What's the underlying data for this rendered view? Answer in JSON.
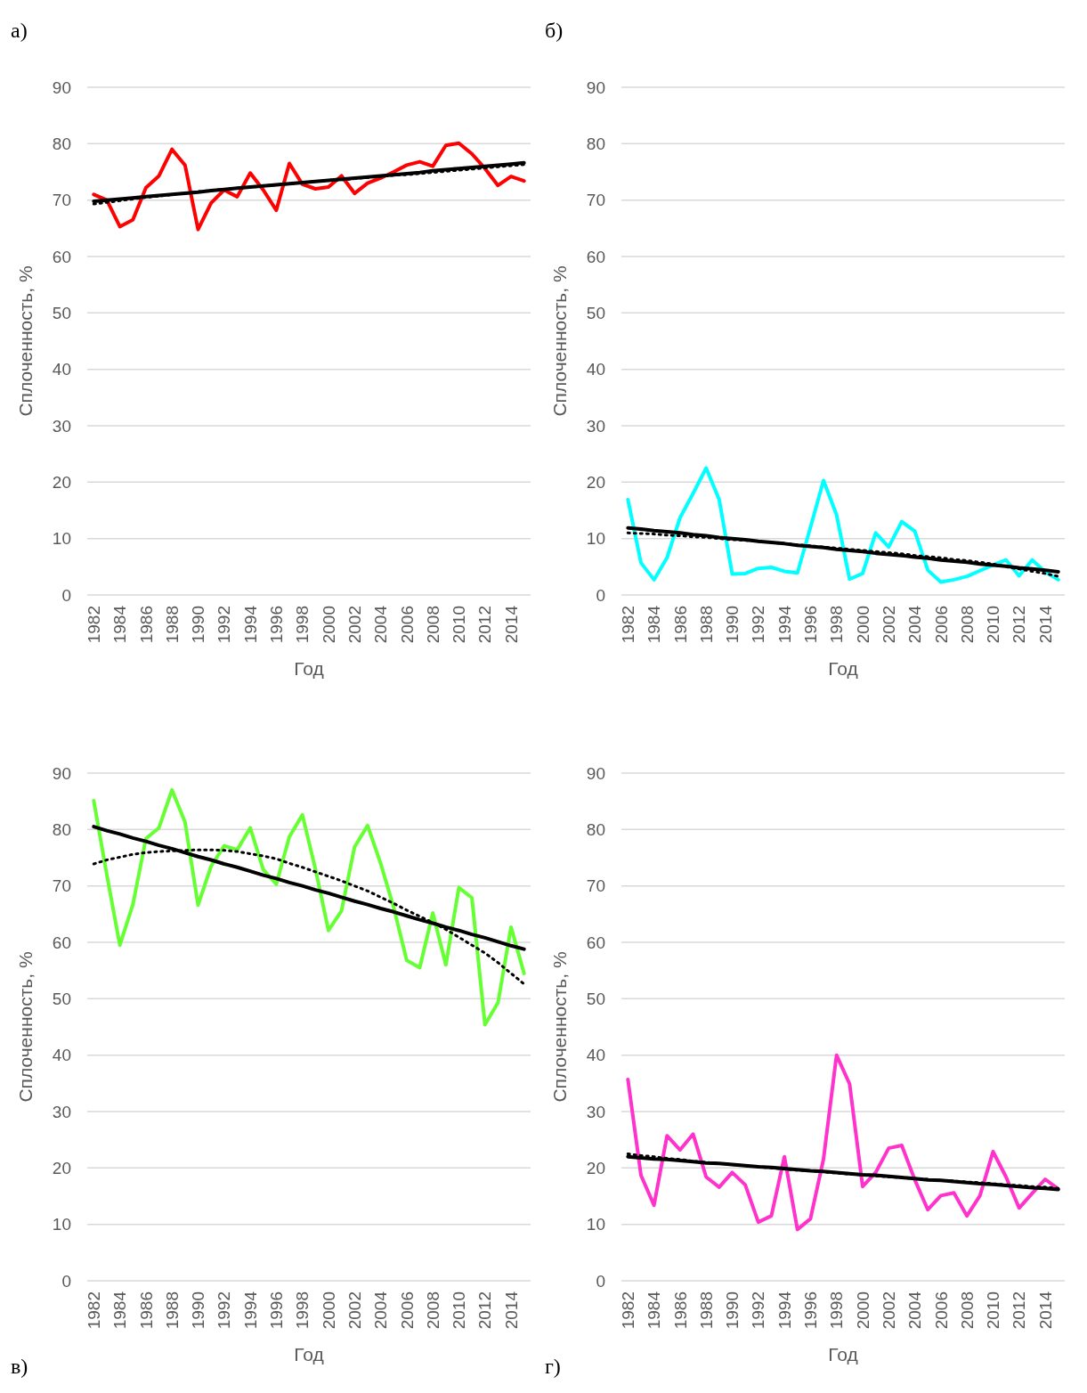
{
  "chart_data": [
    {
      "type": "line",
      "title": "а)",
      "xlabel": "Год",
      "ylabel": "Сплоченность, %",
      "categories": [
        "1982",
        null,
        "1984",
        null,
        "1986",
        null,
        "1988",
        null,
        "1990",
        null,
        "1992",
        null,
        "1994",
        null,
        "1996",
        null,
        "1998",
        null,
        "2000",
        null,
        "2002",
        null,
        "2004",
        null,
        "2006",
        null,
        "2008",
        null,
        "2010",
        null,
        "2012",
        null,
        "2014",
        null
      ],
      "ylim": [
        0,
        90
      ],
      "yticks": [
        0,
        10,
        20,
        30,
        40,
        50,
        60,
        70,
        80,
        90
      ],
      "grid": "y",
      "series": [
        {
          "color": "#ff0000",
          "line_style": "solid",
          "values": [
            71,
            70,
            65.3,
            66.5,
            72.2,
            74.3,
            79,
            76.2,
            64.8,
            69.5,
            71.8,
            70.6,
            74.8,
            71.8,
            68.2,
            76.5,
            72.8,
            72,
            72.3,
            74.3,
            71.2,
            73,
            73.9,
            75,
            76.2,
            76.8,
            76,
            79.7,
            80.1,
            78.2,
            75.6,
            72.6,
            74.2,
            73.4
          ]
        },
        {
          "color": "#000000",
          "line_style": "solid",
          "values": [
            69.8,
            70.0,
            70.2,
            70.4,
            70.6,
            70.8,
            71.0,
            71.2,
            71.4,
            71.7,
            71.9,
            72.1,
            72.3,
            72.5,
            72.7,
            72.9,
            73.1,
            73.3,
            73.5,
            73.7,
            73.9,
            74.1,
            74.3,
            74.5,
            74.7,
            74.9,
            75.2,
            75.4,
            75.6,
            75.8,
            76.0,
            76.2,
            76.4,
            76.6
          ]
        },
        {
          "color": "#000000",
          "line_style": "dotted",
          "values": [
            69.3,
            69.6,
            69.9,
            70.2,
            70.5,
            70.7,
            71.0,
            71.2,
            71.5,
            71.7,
            71.9,
            72.1,
            72.3,
            72.5,
            72.7,
            72.9,
            73.1,
            73.3,
            73.5,
            73.6,
            73.8,
            74.0,
            74.2,
            74.4,
            74.5,
            74.7,
            74.9,
            75.1,
            75.3,
            75.5,
            75.7,
            75.9,
            76.1,
            76.3
          ]
        }
      ]
    },
    {
      "type": "line",
      "title": "б)",
      "xlabel": "Год",
      "ylabel": "Сплоченность, %",
      "categories": [
        "1982",
        null,
        "1984",
        null,
        "1986",
        null,
        "1988",
        null,
        "1990",
        null,
        "1992",
        null,
        "1994",
        null,
        "1996",
        null,
        "1998",
        null,
        "2000",
        null,
        "2002",
        null,
        "2004",
        null,
        "2006",
        null,
        "2008",
        null,
        "2010",
        null,
        "2012",
        null,
        "2014",
        null
      ],
      "ylim": [
        0,
        90
      ],
      "yticks": [
        0,
        10,
        20,
        30,
        40,
        50,
        60,
        70,
        80,
        90
      ],
      "grid": "y",
      "series": [
        {
          "color": "#00ffff",
          "line_style": "solid",
          "values": [
            16.9,
            5.7,
            2.7,
            6.6,
            13.7,
            18,
            22.5,
            16.9,
            3.7,
            3.8,
            4.7,
            4.9,
            4.2,
            3.9,
            12,
            20.3,
            14.2,
            2.8,
            3.8,
            11,
            8.5,
            13,
            11.3,
            4.4,
            2.3,
            2.7,
            3.3,
            4.3,
            5.3,
            6.2,
            3.4,
            6.2,
            4.1,
            2.7
          ]
        },
        {
          "color": "#000000",
          "line_style": "solid",
          "values": [
            11.9,
            11.7,
            11.4,
            11.2,
            11.0,
            10.7,
            10.5,
            10.2,
            10.0,
            9.8,
            9.5,
            9.3,
            9.1,
            8.8,
            8.6,
            8.4,
            8.1,
            7.9,
            7.7,
            7.4,
            7.2,
            7.0,
            6.7,
            6.5,
            6.2,
            6.0,
            5.8,
            5.5,
            5.3,
            5.1,
            4.8,
            4.6,
            4.4,
            4.1
          ]
        },
        {
          "color": "#000000",
          "line_style": "dotted",
          "values": [
            11.0,
            10.9,
            10.8,
            10.6,
            10.5,
            10.3,
            10.2,
            10.0,
            9.8,
            9.7,
            9.5,
            9.3,
            9.1,
            8.9,
            8.7,
            8.5,
            8.3,
            8.1,
            7.9,
            7.7,
            7.5,
            7.3,
            7.0,
            6.8,
            6.6,
            6.3,
            6.1,
            5.8,
            5.5,
            5.0,
            4.6,
            4.2,
            3.8,
            3.3
          ]
        }
      ]
    },
    {
      "type": "line",
      "title": "в)",
      "xlabel": "Год",
      "ylabel": "Сплоченность, %",
      "categories": [
        "1982",
        null,
        "1984",
        null,
        "1986",
        null,
        "1988",
        null,
        "1990",
        null,
        "1992",
        null,
        "1994",
        null,
        "1996",
        null,
        "1998",
        null,
        "2000",
        null,
        "2002",
        null,
        "2004",
        null,
        "2006",
        null,
        "2008",
        null,
        "2010",
        null,
        "2012",
        null,
        "2014",
        null
      ],
      "ylim": [
        0,
        90
      ],
      "yticks": [
        0,
        10,
        20,
        30,
        40,
        50,
        60,
        70,
        80,
        90
      ],
      "grid": "y",
      "series": [
        {
          "color": "#66ff33",
          "line_style": "solid",
          "values": [
            85.1,
            72,
            59.5,
            66.7,
            78.4,
            80.3,
            87,
            81.3,
            66.6,
            73.5,
            77.1,
            76.4,
            80.3,
            72.9,
            70.3,
            78.7,
            82.6,
            73,
            62.1,
            65.6,
            76.9,
            80.7,
            74,
            66.2,
            56.8,
            55.5,
            65.2,
            56,
            69.7,
            67.9,
            45.4,
            49.3,
            62.7,
            54.5
          ]
        },
        {
          "color": "#000000",
          "line_style": "solid",
          "values": [
            80.5,
            79.8,
            79.2,
            78.5,
            77.9,
            77.2,
            76.6,
            75.9,
            75.2,
            74.6,
            73.9,
            73.3,
            72.6,
            71.9,
            71.3,
            70.6,
            70.0,
            69.3,
            68.7,
            68.0,
            67.3,
            66.7,
            66.0,
            65.4,
            64.7,
            64.0,
            63.4,
            62.7,
            62.1,
            61.4,
            60.8,
            60.1,
            59.4,
            58.8
          ]
        },
        {
          "color": "#000000",
          "line_style": "dotted",
          "values": [
            73.9,
            74.6,
            75.1,
            75.6,
            75.9,
            76.1,
            76.2,
            76.3,
            76.4,
            76.4,
            76.3,
            76.1,
            75.7,
            75.3,
            74.8,
            74.0,
            73.3,
            72.5,
            71.7,
            70.9,
            70.0,
            69.1,
            68.0,
            66.9,
            65.7,
            64.6,
            63.5,
            62.3,
            60.9,
            59.5,
            58.1,
            56.4,
            54.5,
            52.6
          ]
        }
      ]
    },
    {
      "type": "line",
      "title": "г)",
      "xlabel": "Год",
      "ylabel": "Сплоченность, %",
      "categories": [
        "1982",
        null,
        "1984",
        null,
        "1986",
        null,
        "1988",
        null,
        "1990",
        null,
        "1992",
        null,
        "1994",
        null,
        "1996",
        null,
        "1998",
        null,
        "2000",
        null,
        "2002",
        null,
        "2004",
        null,
        "2006",
        null,
        "2008",
        null,
        "2010",
        null,
        "2012",
        null,
        "2014",
        null
      ],
      "ylim": [
        0,
        90
      ],
      "yticks": [
        0,
        10,
        20,
        30,
        40,
        50,
        60,
        70,
        80,
        90
      ],
      "grid": "y",
      "series": [
        {
          "color": "#ff33cc",
          "line_style": "solid",
          "values": [
            35.7,
            18.7,
            13.4,
            25.7,
            23.2,
            26,
            18.4,
            16.6,
            19.2,
            17,
            10.4,
            11.5,
            22,
            9.1,
            11,
            21.6,
            40,
            34.9,
            16.7,
            19.2,
            23.5,
            24,
            17.9,
            12.6,
            15.1,
            15.6,
            11.5,
            15.1,
            22.9,
            18.4,
            12.9,
            15.5,
            18,
            16.3
          ]
        },
        {
          "color": "#000000",
          "line_style": "solid",
          "values": [
            22.0,
            21.8,
            21.6,
            21.5,
            21.3,
            21.1,
            20.9,
            20.8,
            20.6,
            20.4,
            20.2,
            20.1,
            19.9,
            19.7,
            19.5,
            19.4,
            19.2,
            19.0,
            18.8,
            18.7,
            18.5,
            18.3,
            18.1,
            17.9,
            17.8,
            17.6,
            17.4,
            17.2,
            17.1,
            16.9,
            16.7,
            16.5,
            16.4,
            16.2
          ]
        },
        {
          "color": "#000000",
          "line_style": "dotted",
          "values": [
            22.5,
            22.2,
            22.0,
            21.7,
            21.5,
            21.2,
            21.0,
            20.8,
            20.6,
            20.4,
            20.2,
            20.0,
            19.8,
            19.6,
            19.5,
            19.3,
            19.1,
            18.9,
            18.8,
            18.6,
            18.4,
            18.3,
            18.1,
            18.0,
            17.8,
            17.7,
            17.5,
            17.4,
            17.2,
            17.0,
            16.9,
            16.7,
            16.6,
            16.4
          ]
        }
      ]
    }
  ]
}
